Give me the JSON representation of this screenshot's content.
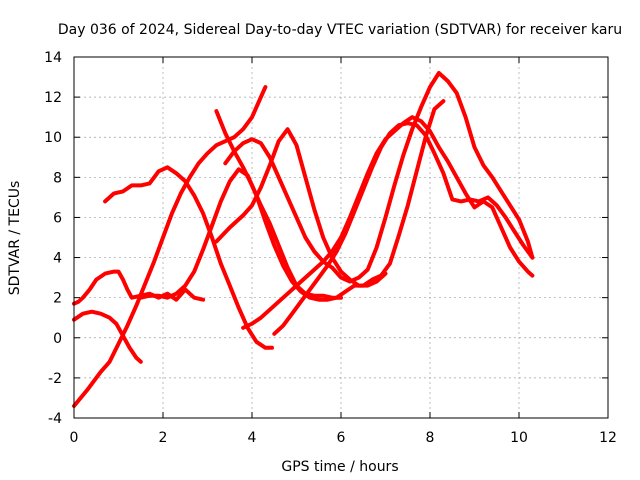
{
  "chart_data": {
    "type": "scatter",
    "title": "Day 036 of 2024, Sidereal Day-to-day VTEC variation (SDTVAR) for receiver karu",
    "xlabel": "GPS time / hours",
    "ylabel": "SDTVAR / TECUs",
    "xlim": [
      0,
      12
    ],
    "ylim": [
      -4,
      14
    ],
    "x_ticks": [
      0,
      2,
      4,
      6,
      8,
      10,
      12
    ],
    "y_ticks": [
      -4,
      -2,
      0,
      2,
      4,
      6,
      8,
      10,
      12,
      14
    ],
    "x_tick_labels": [
      "0",
      "2",
      "4",
      "6",
      "8",
      "10",
      "12"
    ],
    "y_tick_labels": [
      "-4",
      "-2",
      "0",
      "2",
      "4",
      "6",
      "8",
      "10",
      "12",
      "14"
    ],
    "grid": true,
    "marker": "plus",
    "color": "#ff0000",
    "series": [
      {
        "x": [
          0.0,
          0.2,
          0.4,
          0.6,
          0.8,
          0.95,
          1.1,
          1.25,
          1.4,
          1.5
        ],
        "y": [
          0.9,
          1.2,
          1.3,
          1.2,
          1.0,
          0.7,
          0.1,
          -0.5,
          -1.0,
          -1.2
        ]
      },
      {
        "x": [
          0.0,
          0.1,
          0.2,
          0.35,
          0.5,
          0.7,
          0.9,
          1.0,
          1.1,
          1.2,
          1.3,
          1.5,
          1.7,
          1.9,
          2.1,
          2.3,
          2.5,
          2.7,
          2.9
        ],
        "y": [
          1.7,
          1.8,
          2.0,
          2.4,
          2.9,
          3.2,
          3.3,
          3.3,
          2.9,
          2.4,
          2.0,
          2.1,
          2.2,
          2.0,
          2.2,
          1.9,
          2.4,
          2.0,
          1.9
        ]
      },
      {
        "x": [
          0.0,
          0.3,
          0.6,
          0.8,
          1.0,
          1.2,
          1.4,
          1.6,
          1.8,
          2.0,
          2.2,
          2.4,
          2.6,
          2.8,
          3.0,
          3.2,
          3.4,
          3.6,
          3.8,
          4.0,
          4.2,
          4.3
        ],
        "y": [
          -3.4,
          -2.6,
          -1.7,
          -1.2,
          -0.3,
          0.6,
          1.6,
          2.7,
          3.8,
          5.0,
          6.2,
          7.2,
          8.0,
          8.7,
          9.2,
          9.6,
          9.8,
          10.0,
          10.4,
          11.0,
          12.0,
          12.5
        ]
      },
      {
        "x": [
          0.7,
          0.9,
          1.1,
          1.3,
          1.5,
          1.7,
          1.9,
          2.1,
          2.3,
          2.5,
          2.7,
          2.9,
          3.1,
          3.3,
          3.5,
          3.7,
          3.9,
          4.1,
          4.3,
          4.45
        ],
        "y": [
          6.8,
          7.2,
          7.3,
          7.6,
          7.6,
          7.7,
          8.3,
          8.5,
          8.2,
          7.8,
          7.1,
          6.2,
          5.0,
          3.7,
          2.6,
          1.5,
          0.5,
          -0.2,
          -0.5,
          -0.5
        ]
      },
      {
        "x": [
          1.5,
          1.7,
          1.9,
          2.1,
          2.3,
          2.5,
          2.7,
          2.9,
          3.1,
          3.3,
          3.5,
          3.7,
          3.9,
          4.1,
          4.3,
          4.5,
          4.7,
          4.9,
          5.1,
          5.3,
          5.5,
          5.7,
          5.9,
          6.1,
          6.3,
          6.5,
          6.7,
          6.9,
          7.1,
          7.3,
          7.5,
          7.7,
          7.9,
          8.1,
          8.3
        ],
        "y": [
          2.0,
          2.1,
          2.1,
          2.0,
          2.2,
          2.6,
          3.3,
          4.4,
          5.6,
          6.8,
          7.8,
          8.4,
          8.1,
          7.1,
          5.8,
          4.6,
          3.6,
          2.8,
          2.3,
          2.0,
          1.9,
          1.9,
          2.0,
          2.3,
          2.6,
          2.6,
          2.9,
          3.1,
          3.7,
          5.1,
          6.6,
          8.3,
          10.0,
          11.4,
          11.8
        ]
      },
      {
        "x": [
          3.2,
          3.4,
          3.6,
          3.8,
          4.0,
          4.2,
          4.4,
          4.6,
          4.8,
          5.0,
          5.2,
          5.4,
          5.6,
          5.8,
          6.0
        ],
        "y": [
          11.3,
          10.2,
          9.3,
          8.5,
          7.6,
          6.6,
          5.7,
          4.6,
          3.5,
          2.6,
          2.2,
          2.1,
          2.1,
          2.0,
          2.0
        ]
      },
      {
        "x": [
          3.2,
          3.5,
          3.8,
          4.0,
          4.2,
          4.4,
          4.6,
          4.8,
          5.0,
          5.2,
          5.4,
          5.6,
          5.8,
          6.0,
          6.2,
          6.4,
          6.6,
          6.8,
          7.0
        ],
        "y": [
          4.8,
          5.5,
          6.1,
          6.6,
          7.5,
          8.6,
          9.8,
          10.4,
          9.6,
          8.0,
          6.4,
          5.0,
          4.0,
          3.3,
          2.9,
          2.6,
          2.6,
          2.8,
          3.2
        ]
      },
      {
        "x": [
          3.4,
          3.6,
          3.8,
          4.0,
          4.2,
          4.4,
          4.6,
          4.8,
          5.0,
          5.2,
          5.4,
          5.6,
          5.8,
          6.0,
          6.2,
          6.4,
          6.6,
          6.8,
          7.0,
          7.2,
          7.4,
          7.6,
          7.8,
          8.0,
          8.2,
          8.4,
          8.6,
          8.8,
          9.0,
          9.2,
          9.4,
          9.6,
          9.8,
          10.0,
          10.2,
          10.3
        ],
        "y": [
          8.7,
          9.3,
          9.7,
          9.9,
          9.7,
          9.0,
          8.0,
          7.0,
          6.0,
          5.0,
          4.3,
          3.8,
          3.5,
          3.0,
          2.8,
          3.0,
          3.4,
          4.5,
          6.0,
          7.6,
          9.1,
          10.4,
          11.5,
          12.5,
          13.2,
          12.8,
          12.2,
          11.0,
          9.5,
          8.6,
          8.0,
          7.3,
          6.6,
          5.9,
          4.8,
          4.0
        ]
      },
      {
        "x": [
          3.8,
          4.0,
          4.2,
          4.4,
          4.6,
          4.8,
          5.0,
          5.2,
          5.4,
          5.6,
          5.8,
          6.0,
          6.2,
          6.4,
          6.6,
          6.8,
          7.0,
          7.2,
          7.4,
          7.6,
          7.8,
          8.0,
          8.2,
          8.4,
          8.6,
          8.8,
          9.0,
          9.2,
          9.4,
          9.6,
          9.8,
          10.0,
          10.2,
          10.3
        ],
        "y": [
          0.5,
          0.7,
          1.0,
          1.4,
          1.8,
          2.2,
          2.6,
          3.0,
          3.4,
          3.8,
          4.3,
          5.0,
          6.0,
          7.1,
          8.2,
          9.2,
          9.9,
          10.3,
          10.7,
          11.0,
          10.8,
          10.3,
          9.5,
          8.8,
          8.0,
          7.2,
          6.5,
          6.8,
          6.5,
          5.5,
          4.5,
          3.8,
          3.3,
          3.1
        ]
      },
      {
        "x": [
          4.5,
          4.7,
          4.9,
          5.1,
          5.3,
          5.5,
          5.7,
          5.9,
          6.1,
          6.3,
          6.5,
          6.7,
          6.9,
          7.1,
          7.3,
          7.5,
          7.7,
          7.9,
          8.1,
          8.3,
          8.5,
          8.7,
          8.9,
          9.1,
          9.3,
          9.5,
          9.7,
          9.9,
          10.1,
          10.3
        ],
        "y": [
          0.2,
          0.6,
          1.2,
          1.8,
          2.4,
          3.0,
          3.6,
          4.3,
          5.2,
          6.3,
          7.4,
          8.5,
          9.5,
          10.2,
          10.6,
          10.7,
          10.6,
          10.1,
          9.2,
          8.2,
          6.9,
          6.8,
          6.9,
          6.8,
          7.0,
          6.6,
          6.0,
          5.3,
          4.6,
          4.0
        ]
      }
    ]
  }
}
